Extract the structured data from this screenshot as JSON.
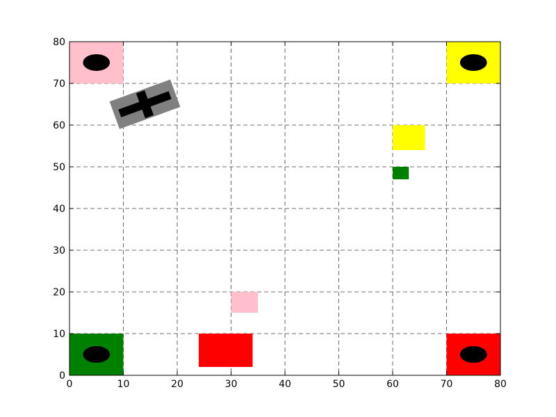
{
  "chart_data": {
    "type": "scatter",
    "title": "",
    "xlabel": "",
    "ylabel": "",
    "xlim": [
      0,
      80
    ],
    "ylim": [
      0,
      80
    ],
    "grid": true,
    "x_ticks": [
      "0",
      "10",
      "20",
      "30",
      "40",
      "50",
      "60",
      "70",
      "80"
    ],
    "y_ticks": [
      "0",
      "10",
      "20",
      "30",
      "40",
      "50",
      "60",
      "70",
      "80"
    ],
    "zones": [
      {
        "name": "pink-base",
        "color": "#ffc0cb",
        "x": [
          0,
          10
        ],
        "y": [
          70,
          80
        ],
        "marker_center": [
          5,
          75
        ]
      },
      {
        "name": "yellow-base",
        "color": "#ffff00",
        "x": [
          70,
          80
        ],
        "y": [
          70,
          80
        ],
        "marker_center": [
          75,
          75
        ]
      },
      {
        "name": "green-base",
        "color": "#008000",
        "x": [
          0,
          10
        ],
        "y": [
          0,
          10
        ],
        "marker_center": [
          5,
          5
        ]
      },
      {
        "name": "red-base",
        "color": "#ff0000",
        "x": [
          70,
          80
        ],
        "y": [
          0,
          10
        ],
        "marker_center": [
          75,
          5
        ]
      }
    ],
    "blocks": [
      {
        "name": "red-block",
        "color": "#ff0000",
        "x": [
          24,
          34
        ],
        "y": [
          2,
          10
        ]
      },
      {
        "name": "pink-block",
        "color": "#ffc0cb",
        "x": [
          30,
          35
        ],
        "y": [
          15,
          20
        ]
      },
      {
        "name": "yellow-block",
        "color": "#ffff00",
        "x": [
          60,
          66
        ],
        "y": [
          54,
          60
        ]
      },
      {
        "name": "green-block",
        "color": "#008000",
        "x": [
          60,
          63
        ],
        "y": [
          47,
          50
        ]
      }
    ],
    "robot": {
      "center": [
        14,
        65
      ],
      "width": 12,
      "height": 7,
      "angle_deg": 20,
      "body_color": "#808080",
      "cross_color": "#000000"
    },
    "marker_color": "#000000"
  }
}
